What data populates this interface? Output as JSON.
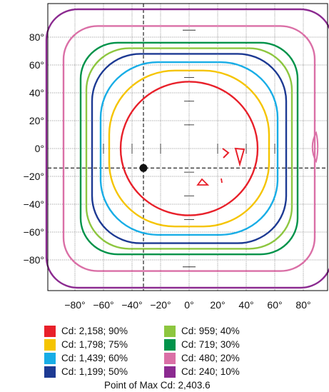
{
  "chart_data": {
    "type": "contour",
    "xlabel": "",
    "ylabel": "",
    "xlim": [
      -90,
      90
    ],
    "ylim": [
      -90,
      90
    ],
    "x_ticks": [
      -80,
      -60,
      -40,
      -20,
      0,
      20,
      40,
      60,
      80
    ],
    "y_ticks": [
      80,
      60,
      40,
      20,
      0,
      -20,
      -40,
      -60,
      -80
    ],
    "x_tick_labels": [
      "−80°",
      "−60°",
      "−40°",
      "−20°",
      "0°",
      "20°",
      "40°",
      "60°",
      "80°"
    ],
    "y_tick_labels": [
      "80°",
      "60°",
      "40°",
      "20°",
      "0°",
      "−20°",
      "−40°",
      "−60°",
      "−80°"
    ],
    "grid": true,
    "contours": [
      {
        "label": "Cd: 2,158; 90%",
        "color": "#e8202a",
        "half_extent": 48,
        "corner": 48
      },
      {
        "label": "Cd: 1,798; 75%",
        "color": "#f5c400",
        "half_extent": 56,
        "corner": 46
      },
      {
        "label": "Cd: 1,439; 60%",
        "color": "#18ade6",
        "half_extent": 62,
        "corner": 40
      },
      {
        "label": "Cd: 1,199; 50%",
        "color": "#1d3a93",
        "half_extent": 68,
        "corner": 34
      },
      {
        "label": "Cd: 959; 40%",
        "color": "#8dc63f",
        "half_extent": 72,
        "corner": 30
      },
      {
        "label": "Cd: 719; 30%",
        "color": "#00934a",
        "half_extent": 76,
        "corner": 26
      },
      {
        "label": "Cd: 480; 20%",
        "color": "#da6fa6",
        "half_extent": 88,
        "corner": 24
      },
      {
        "label": "Cd: 240; 10%",
        "color": "#8b2a90",
        "half_extent": 100,
        "corner": 22
      }
    ],
    "max_point": {
      "x": -32,
      "y": -14,
      "label": "Point of Max Cd: 2,403.6"
    },
    "legend_position": "bottom"
  }
}
